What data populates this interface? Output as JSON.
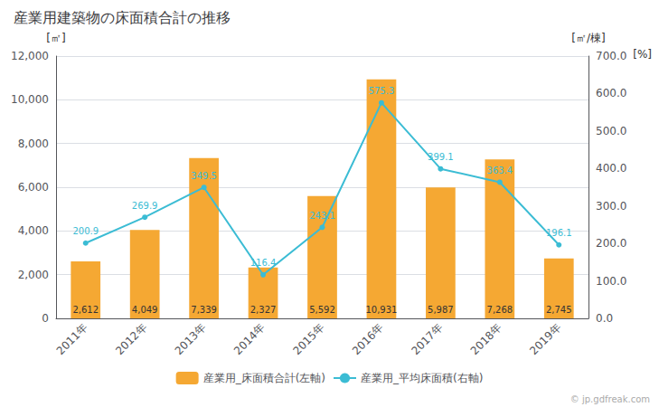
{
  "chart_data": {
    "type": "bar",
    "title": "産業用建築物の床面積合計の推移",
    "categories": [
      "2011年",
      "2012年",
      "2013年",
      "2014年",
      "2015年",
      "2016年",
      "2017年",
      "2018年",
      "2019年"
    ],
    "series": [
      {
        "name": "産業用_床面積合計(左軸)",
        "type": "bar",
        "color": "#f5a833",
        "values": [
          2612,
          4049,
          7339,
          2327,
          5592,
          10931,
          5987,
          7268,
          2745
        ],
        "value_labels": [
          "2,612",
          "4,049",
          "7,339",
          "2,327",
          "5,592",
          "10,931",
          "5,987",
          "7,268",
          "2,745"
        ]
      },
      {
        "name": "産業用_平均床面積(右軸)",
        "type": "line",
        "axis": "y2",
        "color": "#3bbcd4",
        "marker": "circle",
        "values": [
          200.9,
          269.9,
          349.5,
          116.4,
          243.1,
          575.3,
          399.1,
          363.4,
          196.1
        ]
      }
    ],
    "ylabel": "[㎡]",
    "y2label": "[㎡/棟]",
    "annotations": [
      "[%]",
      "© jp.gdfreak.com"
    ],
    "ylim": [
      0,
      12000
    ],
    "yticks": [
      0,
      {
        "value": 2000,
        "label": "2,000"
      },
      {
        "value": 4000,
        "label": "4,000"
      },
      {
        "value": 6000,
        "label": "6,000"
      },
      {
        "value": 8000,
        "label": "8,000"
      },
      {
        "value": 10000,
        "label": "10,000"
      },
      {
        "value": 12000,
        "label": "12,000"
      }
    ],
    "y2lim": [
      0,
      700
    ],
    "y2ticks": [
      {
        "value": 0,
        "label": "0.0"
      },
      {
        "value": 100,
        "label": "100.0"
      },
      {
        "value": 200,
        "label": "200.0"
      },
      {
        "value": 300,
        "label": "300.0"
      },
      {
        "value": 400,
        "label": "400.0"
      },
      {
        "value": 500,
        "label": "500.0"
      },
      {
        "value": 600,
        "label": "600.0"
      },
      {
        "value": 700,
        "label": "700.0"
      }
    ],
    "grid": true,
    "legend": "bottom",
    "data_labels": true
  }
}
